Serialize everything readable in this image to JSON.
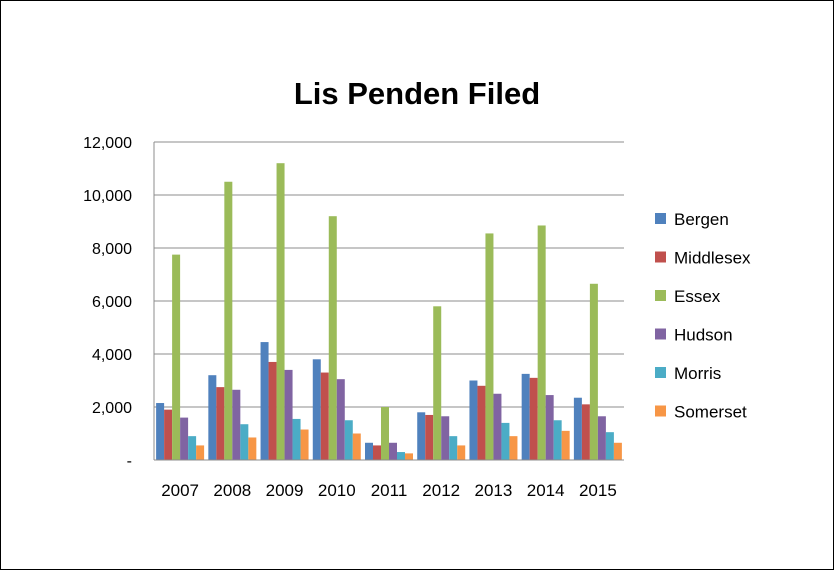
{
  "chart_data": {
    "type": "bar",
    "title": "Lis Penden Filed",
    "xlabel": "",
    "ylabel": "",
    "ylim": [
      0,
      12000
    ],
    "yticks": [
      0,
      2000,
      4000,
      6000,
      8000,
      10000,
      12000
    ],
    "ytick_labels": [
      "-",
      "2,000",
      "4,000",
      "6,000",
      "8,000",
      "10,000",
      "12,000"
    ],
    "grid": true,
    "legend_position": "right",
    "categories": [
      "2007",
      "2008",
      "2009",
      "2010",
      "2011",
      "2012",
      "2013",
      "2014",
      "2015"
    ],
    "series": [
      {
        "name": "Bergen",
        "color": "#4F81BD",
        "values": [
          2150,
          3200,
          4450,
          3800,
          650,
          1800,
          3000,
          3250,
          2350
        ]
      },
      {
        "name": "Middlesex",
        "color": "#C0504D",
        "values": [
          1900,
          2750,
          3700,
          3300,
          550,
          1700,
          2800,
          3100,
          2100
        ]
      },
      {
        "name": "Essex",
        "color": "#9BBB59",
        "values": [
          7750,
          10500,
          11200,
          9200,
          2000,
          5800,
          8550,
          8850,
          6650
        ]
      },
      {
        "name": "Hudson",
        "color": "#8064A2",
        "values": [
          1600,
          2650,
          3400,
          3050,
          650,
          1650,
          2500,
          2450,
          1650
        ]
      },
      {
        "name": "Morris",
        "color": "#4BACC6",
        "values": [
          900,
          1350,
          1550,
          1500,
          300,
          900,
          1400,
          1500,
          1050
        ]
      },
      {
        "name": "Somerset",
        "color": "#F79646",
        "values": [
          550,
          850,
          1150,
          1000,
          250,
          550,
          900,
          1100,
          650
        ]
      }
    ]
  }
}
